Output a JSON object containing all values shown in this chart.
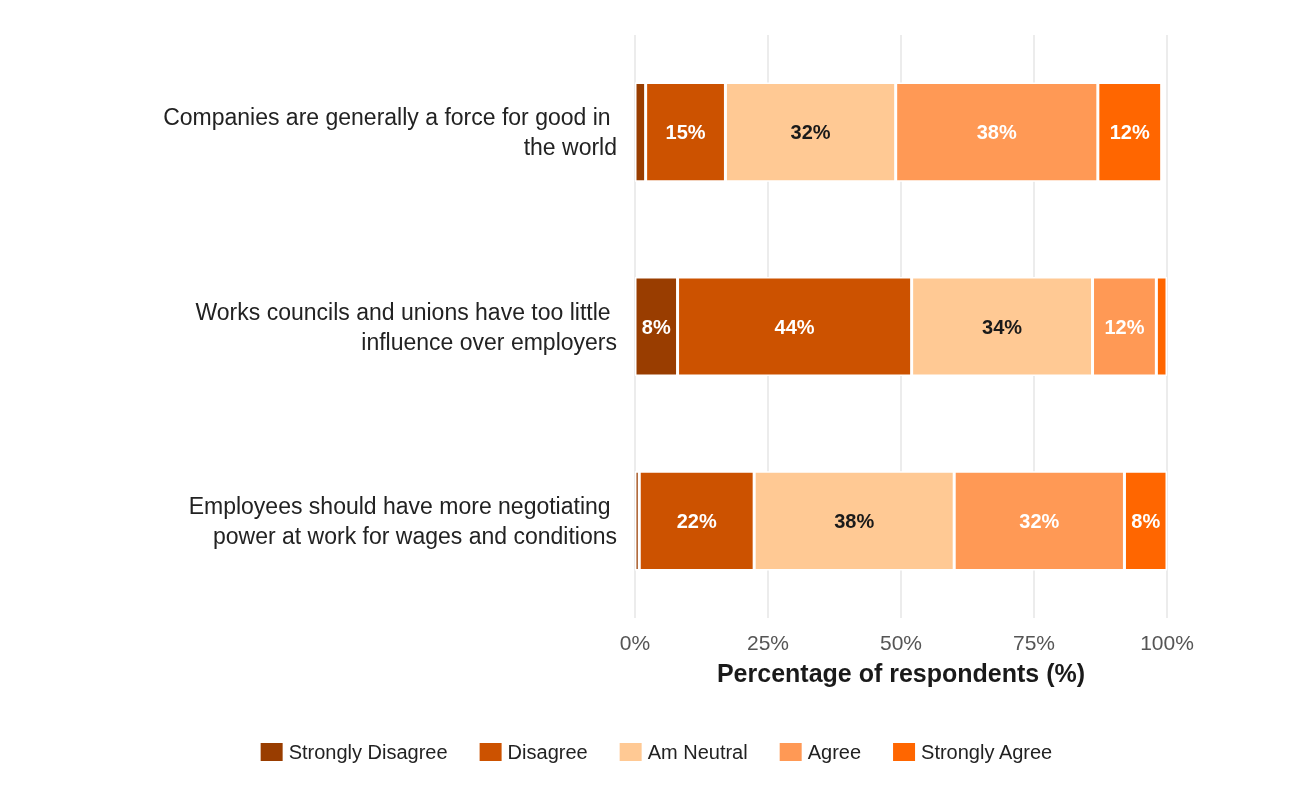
{
  "chart_data": {
    "type": "bar",
    "orientation": "horizontal",
    "stacked": true,
    "xlabel": "Percentage of respondents (%)",
    "categories": [
      "Companies are generally a force for good in the world",
      "Works councils and unions have too little influence over employers",
      "Employees should have more negotiating power at work for wages and conditions"
    ],
    "series": [
      {
        "name": "Strongly Disagree",
        "color": "#993d00",
        "values": [
          2,
          8,
          0.8
        ],
        "value_labels": [
          null,
          "8%",
          null
        ]
      },
      {
        "name": "Disagree",
        "color": "#cc5200",
        "values": [
          15,
          44,
          21.6
        ],
        "value_labels": [
          "15%",
          "44%",
          "22%"
        ]
      },
      {
        "name": "Am Neutral",
        "color": "#ffc994",
        "values": [
          32,
          34,
          37.6
        ],
        "value_labels": [
          "32%",
          "34%",
          "38%"
        ]
      },
      {
        "name": "Agree",
        "color": "#ff9955",
        "values": [
          38,
          12,
          32
        ],
        "value_labels": [
          "38%",
          "12%",
          "32%"
        ]
      },
      {
        "name": "Strongly Agree",
        "color": "#ff6600",
        "values": [
          12,
          2,
          8
        ],
        "value_labels": [
          "12%",
          null,
          "8%"
        ]
      }
    ],
    "xlim": [
      0,
      100
    ],
    "xticks": [
      {
        "value": 0,
        "label": "0%"
      },
      {
        "value": 25,
        "label": "25%"
      },
      {
        "value": 50,
        "label": "50%"
      },
      {
        "value": 75,
        "label": "75%"
      },
      {
        "value": 100,
        "label": "100%"
      }
    ],
    "grid": "x",
    "legend": "bottom"
  }
}
